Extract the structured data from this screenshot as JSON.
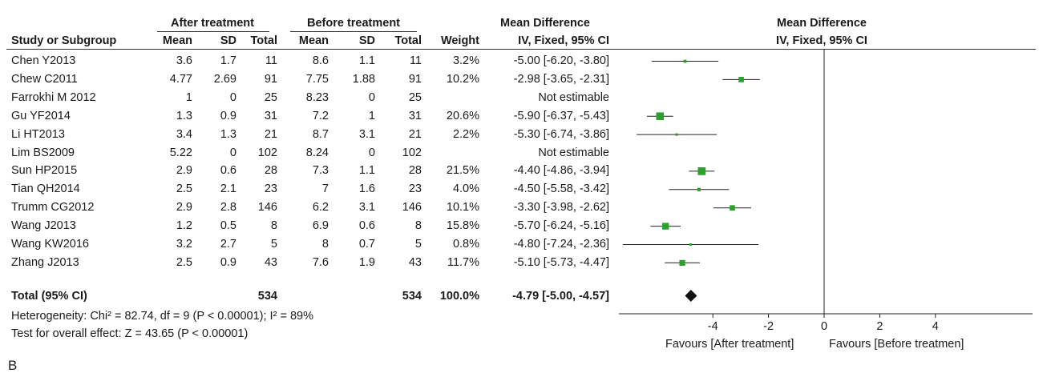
{
  "header": {
    "group1": "After treatment",
    "group2": "Before treatment",
    "md_title": "Mean Difference",
    "plot_title": "Mean Difference",
    "plot_method": "IV, Fixed, 95% CI",
    "cols": {
      "study": "Study or Subgroup",
      "mean1": "Mean",
      "sd1": "SD",
      "total1": "Total",
      "mean2": "Mean",
      "sd2": "SD",
      "total2": "Total",
      "weight": "Weight",
      "ci": "IV, Fixed, 95% CI"
    }
  },
  "total_row": {
    "label": "Total (95% CI)",
    "total1": "534",
    "total2": "534",
    "weight": "100.0%",
    "ci": "-4.79 [-5.00, -4.57]"
  },
  "heterogeneity": "Heterogeneity: Chi² = 82.74, df = 9 (P < 0.00001); I² = 89%",
  "overall_effect": "Test for overall effect: Z = 43.65 (P < 0.00001)",
  "favours_left": "Favours [After treatment]",
  "favours_right": "Favours [Before treatmen]",
  "panel_label": "B",
  "colors": {
    "marker": "#2ca02c",
    "diamond": "#111111",
    "line": "#222222"
  },
  "chart_data": {
    "type": "forest",
    "x_ticks": [
      -4,
      -2,
      0,
      2,
      4
    ],
    "xlim": [
      -7.3,
      7.3
    ],
    "studies": [
      {
        "study": "Chen Y2013",
        "mean1": "3.6",
        "sd1": "1.7",
        "total1": "11",
        "mean2": "8.6",
        "sd2": "1.1",
        "total2": "11",
        "weight": "3.2%",
        "ci": "-5.00 [-6.20, -3.80]",
        "md": -5.0,
        "lo": -6.2,
        "hi": -3.8,
        "w": 3.2
      },
      {
        "study": "Chew C2011",
        "mean1": "4.77",
        "sd1": "2.69",
        "total1": "91",
        "mean2": "7.75",
        "sd2": "1.88",
        "total2": "91",
        "weight": "10.2%",
        "ci": "-2.98 [-3.65, -2.31]",
        "md": -2.98,
        "lo": -3.65,
        "hi": -2.31,
        "w": 10.2
      },
      {
        "study": "Farrokhi M 2012",
        "mean1": "1",
        "sd1": "0",
        "total1": "25",
        "mean2": "8.23",
        "sd2": "0",
        "total2": "25",
        "weight": "",
        "ci": "Not estimable",
        "md": null,
        "lo": null,
        "hi": null,
        "w": 0
      },
      {
        "study": "Gu YF2014",
        "mean1": "1.3",
        "sd1": "0.9",
        "total1": "31",
        "mean2": "7.2",
        "sd2": "1",
        "total2": "31",
        "weight": "20.6%",
        "ci": "-5.90 [-6.37, -5.43]",
        "md": -5.9,
        "lo": -6.37,
        "hi": -5.43,
        "w": 20.6
      },
      {
        "study": "Li HT2013",
        "mean1": "3.4",
        "sd1": "1.3",
        "total1": "21",
        "mean2": "8.7",
        "sd2": "3.1",
        "total2": "21",
        "weight": "2.2%",
        "ci": "-5.30 [-6.74, -3.86]",
        "md": -5.3,
        "lo": -6.74,
        "hi": -3.86,
        "w": 2.2
      },
      {
        "study": "Lim BS2009",
        "mean1": "5.22",
        "sd1": "0",
        "total1": "102",
        "mean2": "8.24",
        "sd2": "0",
        "total2": "102",
        "weight": "",
        "ci": "Not estimable",
        "md": null,
        "lo": null,
        "hi": null,
        "w": 0
      },
      {
        "study": "Sun HP2015",
        "mean1": "2.9",
        "sd1": "0.6",
        "total1": "28",
        "mean2": "7.3",
        "sd2": "1.1",
        "total2": "28",
        "weight": "21.5%",
        "ci": "-4.40 [-4.86, -3.94]",
        "md": -4.4,
        "lo": -4.86,
        "hi": -3.94,
        "w": 21.5
      },
      {
        "study": "Tian QH2014",
        "mean1": "2.5",
        "sd1": "2.1",
        "total1": "23",
        "mean2": "7",
        "sd2": "1.6",
        "total2": "23",
        "weight": "4.0%",
        "ci": "-4.50 [-5.58, -3.42]",
        "md": -4.5,
        "lo": -5.58,
        "hi": -3.42,
        "w": 4.0
      },
      {
        "study": "Trumm CG2012",
        "mean1": "2.9",
        "sd1": "2.8",
        "total1": "146",
        "mean2": "6.2",
        "sd2": "3.1",
        "total2": "146",
        "weight": "10.1%",
        "ci": "-3.30 [-3.98, -2.62]",
        "md": -3.3,
        "lo": -3.98,
        "hi": -2.62,
        "w": 10.1
      },
      {
        "study": "Wang J2013",
        "mean1": "1.2",
        "sd1": "0.5",
        "total1": "8",
        "mean2": "6.9",
        "sd2": "0.6",
        "total2": "8",
        "weight": "15.8%",
        "ci": "-5.70 [-6.24, -5.16]",
        "md": -5.7,
        "lo": -6.24,
        "hi": -5.16,
        "w": 15.8
      },
      {
        "study": "Wang KW2016",
        "mean1": "3.2",
        "sd1": "2.7",
        "total1": "5",
        "mean2": "8",
        "sd2": "0.7",
        "total2": "5",
        "weight": "0.8%",
        "ci": "-4.80 [-7.24, -2.36]",
        "md": -4.8,
        "lo": -7.24,
        "hi": -2.36,
        "w": 0.8
      },
      {
        "study": "Zhang J2013",
        "mean1": "2.5",
        "sd1": "0.9",
        "total1": "43",
        "mean2": "7.6",
        "sd2": "1.9",
        "total2": "43",
        "weight": "11.7%",
        "ci": "-5.10 [-5.73, -4.47]",
        "md": -5.1,
        "lo": -5.73,
        "hi": -4.47,
        "w": 11.7
      }
    ],
    "pooled": {
      "md": -4.79,
      "lo": -5.0,
      "hi": -4.57
    }
  }
}
